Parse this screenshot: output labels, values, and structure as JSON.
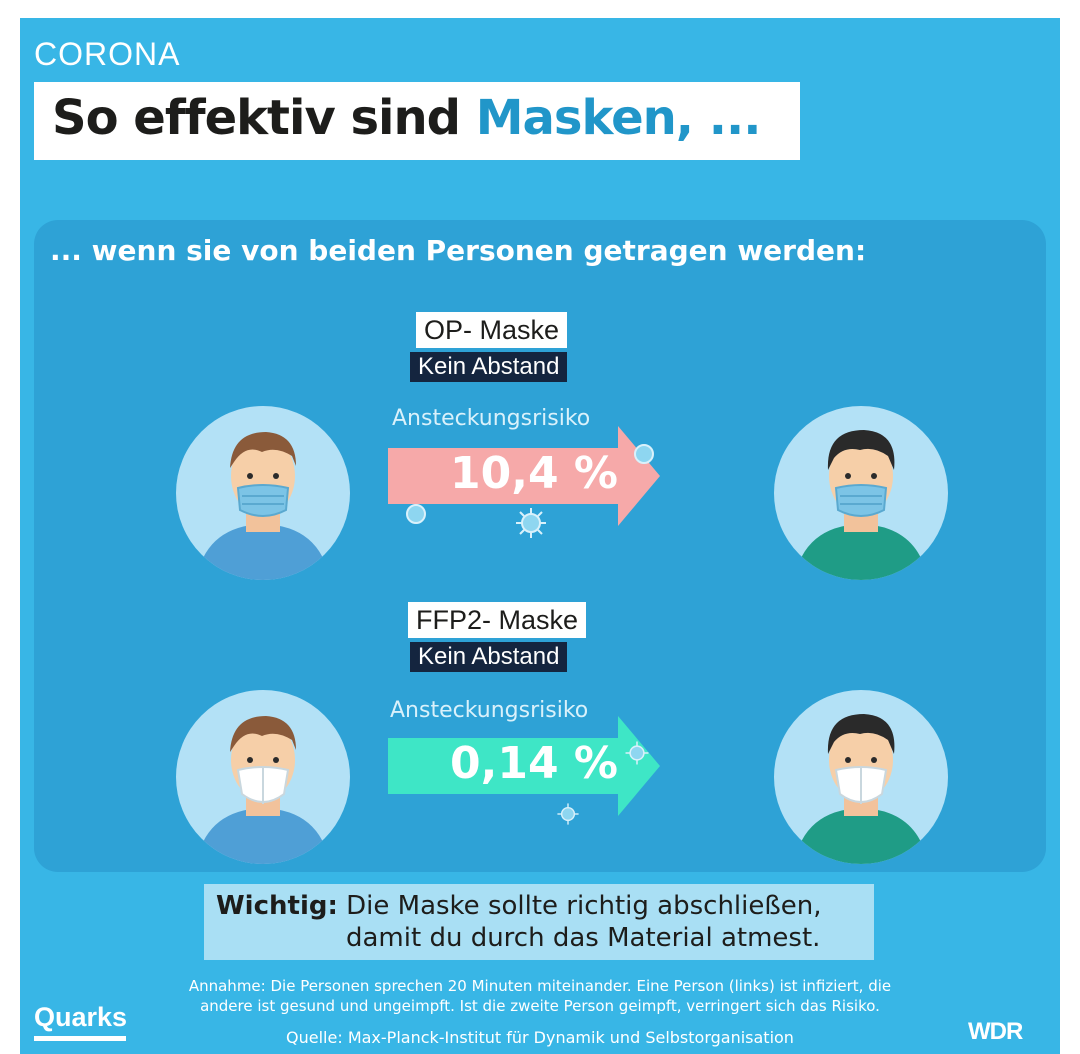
{
  "header": {
    "tag": "CORONA",
    "title_main": "So effektiv sind ",
    "title_highlight": "Masken, ..."
  },
  "panel": {
    "subtitle": "... wenn sie von beiden Personen getragen werden:",
    "comparisons": [
      {
        "mask_type": "OP- Maske",
        "distance": "Kein Abstand",
        "risk_label": "Ansteckungsrisiko",
        "risk_value": "10,4 %",
        "arrow_color": "#f6a9a9",
        "mask_icon": "surgical-mask"
      },
      {
        "mask_type": "FFP2- Maske",
        "distance": "Kein Abstand",
        "risk_label": "Ansteckungsrisiko",
        "risk_value": "0,14 %",
        "arrow_color": "#3ee6c6",
        "mask_icon": "ffp2-mask"
      }
    ]
  },
  "note": {
    "label": "Wichtig:",
    "line1": "Die Maske sollte richtig abschließen,",
    "line2": "damit du durch das Material atmest."
  },
  "footer": {
    "assumption_line1": "Annahme: Die Personen sprechen 20 Minuten miteinander. Eine Person (links) ist infiziert, die",
    "assumption_line2": "andere ist gesund und ungeimpft. Ist die zweite Person geimpft, verringert sich das Risiko.",
    "source": "Quelle: Max-Planck-Institut für Dynamik und Selbstorganisation"
  },
  "logos": {
    "quarks": "Quarks",
    "wdr": "WDR"
  },
  "colors": {
    "background": "#38b6e6",
    "panel": "#2ea2d6",
    "highlight": "#2196c9",
    "dark_label": "#14253f"
  }
}
